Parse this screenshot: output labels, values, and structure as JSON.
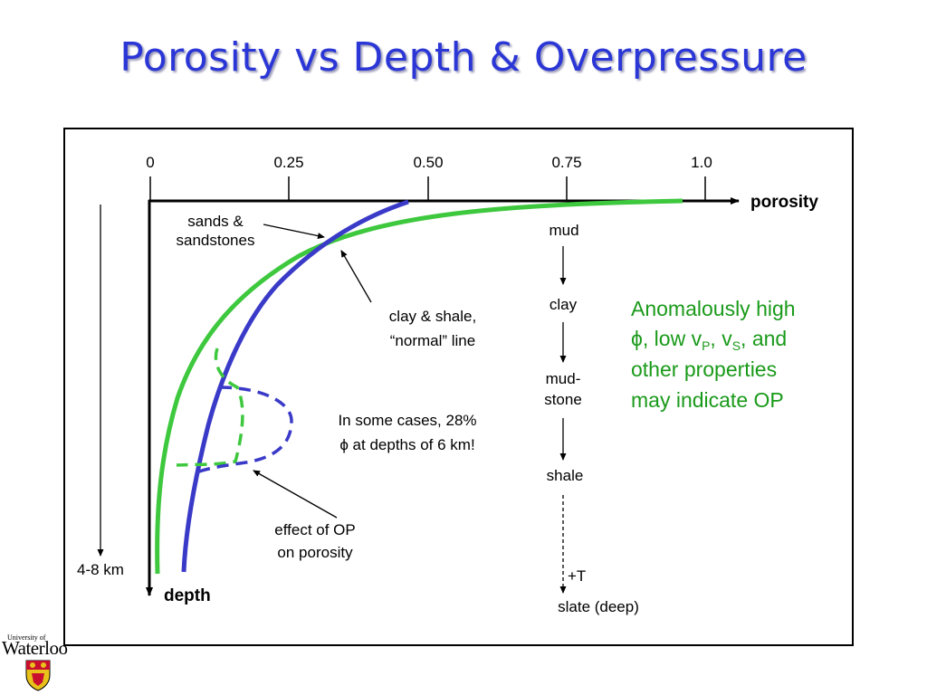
{
  "title": "Porosity vs Depth & Overpressure",
  "axes": {
    "ticks": [
      "0",
      "0.25",
      "0.50",
      "0.75",
      "1.0"
    ],
    "x_label": "porosity",
    "y_label": "depth",
    "depth_range": "4-8 km"
  },
  "labels": {
    "sands_1": "sands &",
    "sands_2": "sandstones",
    "clay_1": "clay & shale,",
    "clay_2": "“normal” line",
    "cases_1": "In some cases, 28%",
    "cases_2": "ϕ at depths of 6 km!",
    "op_1": "effect of OP",
    "op_2": "on porosity"
  },
  "sequence": {
    "mud": "mud",
    "clay": "clay",
    "mudstone_1": "mud-",
    "mudstone_2": "stone",
    "shale": "shale",
    "temp": "+T",
    "slate": "slate (deep)"
  },
  "anomaly": {
    "line1": "Anomalously high",
    "phi": "ϕ",
    "line2_a": ", low v",
    "sub_p": "P",
    "line2_b": ", v",
    "sub_s": "S",
    "line2_c": ", and",
    "line3": "other properties",
    "line4": "may indicate OP"
  },
  "logo": {
    "small": "University of",
    "big": "Waterloo"
  },
  "colors": {
    "title": "#2b36d6",
    "green": "#3ec83e",
    "blue": "#3a3ac8",
    "anomaly_text": "#1a9a1a"
  }
}
